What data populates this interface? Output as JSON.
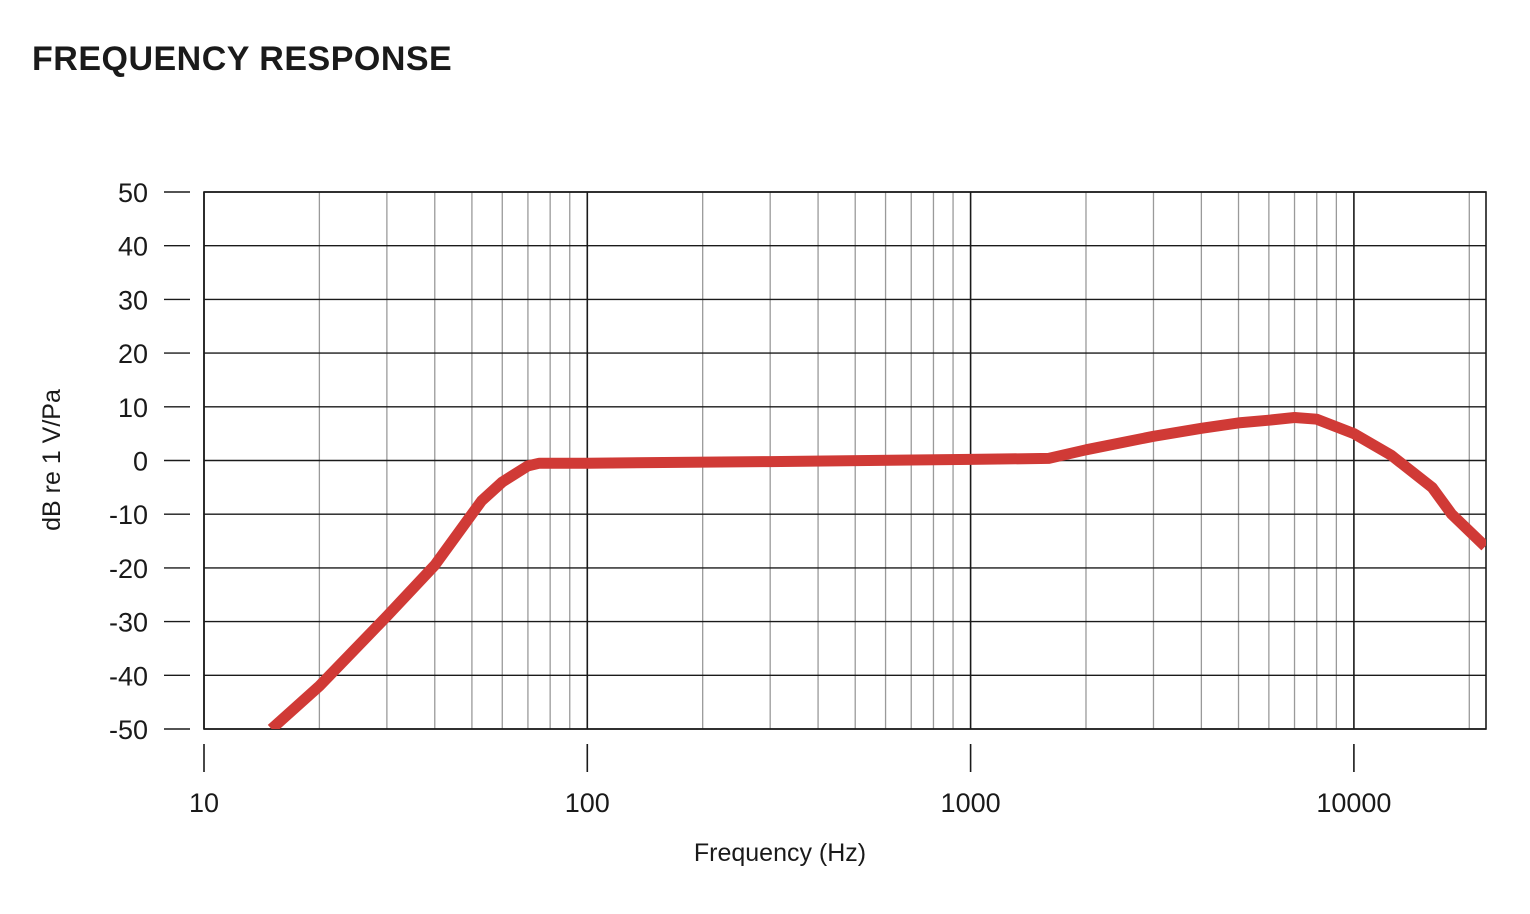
{
  "title": "FREQUENCY RESPONSE",
  "chart_data": {
    "type": "line",
    "title": "FREQUENCY RESPONSE",
    "xlabel": "Frequency (Hz)",
    "ylabel": "dB re 1 V/Pa",
    "xscale": "log",
    "xlim": [
      10,
      22000
    ],
    "ylim": [
      -50,
      50
    ],
    "x_ticks": [
      10,
      100,
      1000,
      10000
    ],
    "x_tick_labels": [
      "10",
      "100",
      "1000",
      "10000"
    ],
    "y_ticks": [
      50,
      40,
      30,
      20,
      10,
      0,
      -10,
      -20,
      -30,
      -40,
      -50
    ],
    "y_tick_labels": [
      "50",
      "40",
      "30",
      "20",
      "10",
      "0",
      "-10",
      "-20",
      "-30",
      "-40",
      "-50"
    ],
    "grid": true,
    "series": [
      {
        "color": "#d03a36",
        "x": [
          15,
          20,
          30,
          40,
          53,
          60,
          70,
          75,
          100,
          300,
          1000,
          1600,
          2000,
          3000,
          4000,
          5000,
          6000,
          7000,
          8000,
          10000,
          12500,
          16000,
          18000,
          22000
        ],
        "y": [
          -50,
          -42,
          -29,
          -19.5,
          -7.5,
          -4,
          -1,
          -0.5,
          -0.5,
          -0.2,
          0.2,
          0.4,
          2,
          4.5,
          6,
          7,
          7.5,
          8,
          7.7,
          5,
          1,
          -5,
          -10,
          -16
        ]
      }
    ]
  }
}
